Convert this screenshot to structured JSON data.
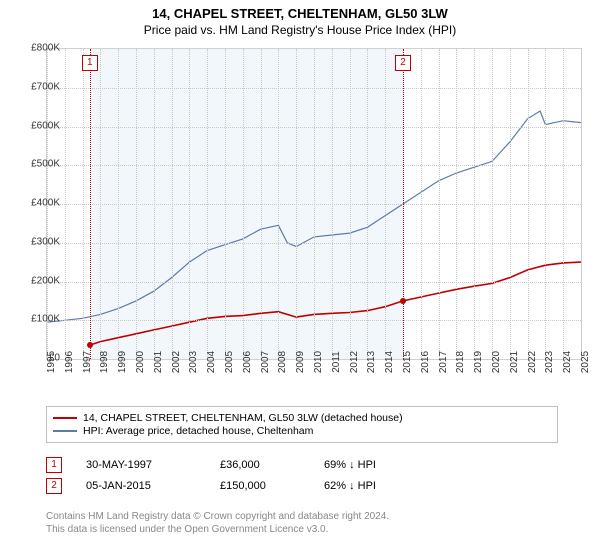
{
  "title": "14, CHAPEL STREET, CHELTENHAM, GL50 3LW",
  "subtitle": "Price paid vs. HM Land Registry's House Price Index (HPI)",
  "chart": {
    "type": "line",
    "background_color": "#ffffff",
    "grid_color": "#c8c8c8",
    "border_color": "#d0d0d0",
    "shade_color": "#e8f0f8",
    "title_fontsize": 13,
    "subtitle_fontsize": 12,
    "axis_fontsize": 10,
    "x": {
      "min": 1995,
      "max": 2025,
      "ticks": [
        1995,
        1996,
        1997,
        1998,
        1999,
        2000,
        2001,
        2002,
        2003,
        2004,
        2005,
        2006,
        2007,
        2008,
        2009,
        2010,
        2011,
        2012,
        2013,
        2014,
        2015,
        2016,
        2017,
        2018,
        2019,
        2020,
        2021,
        2022,
        2023,
        2024,
        2025
      ]
    },
    "y": {
      "min": 0,
      "max": 800000,
      "step": 100000,
      "tick_labels": [
        "£0",
        "£100K",
        "£200K",
        "£300K",
        "£400K",
        "£500K",
        "£600K",
        "£700K",
        "£800K"
      ]
    },
    "shade_range": [
      1997.4,
      2015.0
    ],
    "markers": [
      {
        "n": "1",
        "x": 1997.4,
        "color": "#c00000"
      },
      {
        "n": "2",
        "x": 2015.0,
        "color": "#c00000"
      }
    ],
    "series": [
      {
        "name": "price_paid",
        "label": "14, CHAPEL STREET, CHELTENHAM, GL50 3LW (detached house)",
        "color": "#c00000",
        "width": 1.6,
        "points": [
          [
            1997.4,
            36000
          ],
          [
            1998,
            45000
          ],
          [
            1999,
            55000
          ],
          [
            2000,
            65000
          ],
          [
            2001,
            75000
          ],
          [
            2002,
            85000
          ],
          [
            2003,
            95000
          ],
          [
            2004,
            105000
          ],
          [
            2005,
            110000
          ],
          [
            2006,
            112000
          ],
          [
            2007,
            118000
          ],
          [
            2008,
            122000
          ],
          [
            2009,
            108000
          ],
          [
            2010,
            115000
          ],
          [
            2011,
            118000
          ],
          [
            2012,
            120000
          ],
          [
            2013,
            125000
          ],
          [
            2014,
            135000
          ],
          [
            2015.0,
            150000
          ],
          [
            2016,
            160000
          ],
          [
            2017,
            170000
          ],
          [
            2018,
            180000
          ],
          [
            2019,
            188000
          ],
          [
            2020,
            195000
          ],
          [
            2021,
            210000
          ],
          [
            2022,
            230000
          ],
          [
            2023,
            242000
          ],
          [
            2024,
            248000
          ],
          [
            2025,
            250000
          ]
        ],
        "dots": [
          [
            1997.4,
            36000
          ],
          [
            2015.0,
            150000
          ]
        ]
      },
      {
        "name": "hpi",
        "label": "HPI: Average price, detached house, Cheltenham",
        "color": "#5b7ca8",
        "width": 1.2,
        "points": [
          [
            1995,
            95000
          ],
          [
            1996,
            100000
          ],
          [
            1997,
            105000
          ],
          [
            1998,
            115000
          ],
          [
            1999,
            130000
          ],
          [
            2000,
            150000
          ],
          [
            2001,
            175000
          ],
          [
            2002,
            210000
          ],
          [
            2003,
            250000
          ],
          [
            2004,
            280000
          ],
          [
            2005,
            295000
          ],
          [
            2006,
            310000
          ],
          [
            2007,
            335000
          ],
          [
            2008,
            345000
          ],
          [
            2008.5,
            300000
          ],
          [
            2009,
            290000
          ],
          [
            2010,
            315000
          ],
          [
            2011,
            320000
          ],
          [
            2012,
            325000
          ],
          [
            2013,
            340000
          ],
          [
            2014,
            370000
          ],
          [
            2015,
            400000
          ],
          [
            2016,
            430000
          ],
          [
            2017,
            460000
          ],
          [
            2018,
            480000
          ],
          [
            2019,
            495000
          ],
          [
            2020,
            510000
          ],
          [
            2021,
            560000
          ],
          [
            2022,
            620000
          ],
          [
            2022.7,
            640000
          ],
          [
            2023,
            605000
          ],
          [
            2024,
            615000
          ],
          [
            2025,
            610000
          ]
        ],
        "dots": []
      }
    ]
  },
  "legend": {
    "border_color": "#bfbfbf",
    "items": [
      {
        "color": "#c00000",
        "label": "14, CHAPEL STREET, CHELTENHAM, GL50 3LW (detached house)"
      },
      {
        "color": "#5b7ca8",
        "label": "HPI: Average price, detached house, Cheltenham"
      }
    ]
  },
  "notes": [
    {
      "n": "1",
      "color": "#c00000",
      "date": "30-MAY-1997",
      "price": "£36,000",
      "delta": "69% ↓ HPI"
    },
    {
      "n": "2",
      "color": "#c00000",
      "date": "05-JAN-2015",
      "price": "£150,000",
      "delta": "62% ↓ HPI"
    }
  ],
  "footer_line1": "Contains HM Land Registry data © Crown copyright and database right 2024.",
  "footer_line2": "This data is licensed under the Open Government Licence v3.0.",
  "footer_color": "#888888"
}
